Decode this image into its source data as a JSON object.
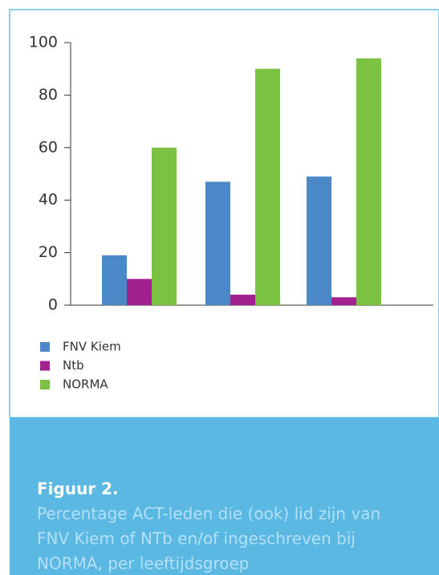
{
  "chart_data": {
    "type": "bar",
    "categories": [
      null,
      null,
      null
    ],
    "series": [
      {
        "name": "FNV Kiem",
        "color": "#4a88c7",
        "values": [
          19,
          47,
          49
        ]
      },
      {
        "name": "Ntb",
        "color": "#a3218e",
        "values": [
          10,
          4,
          3
        ]
      },
      {
        "name": "NORMA",
        "color": "#7cc242",
        "values": [
          60,
          90,
          94
        ]
      }
    ],
    "ylim": [
      0,
      100
    ],
    "yticks": [
      0,
      20,
      40,
      60,
      80,
      100
    ],
    "grid": false,
    "legend": "bottom-left"
  },
  "caption": {
    "title": "Figuur 2.",
    "lines": [
      "Percentage ACT-leden die (ook) lid zijn van",
      "FNV Kiem of NTb en/of ingeschreven bij",
      "NORMA, per leeftijdsgroep"
    ]
  }
}
